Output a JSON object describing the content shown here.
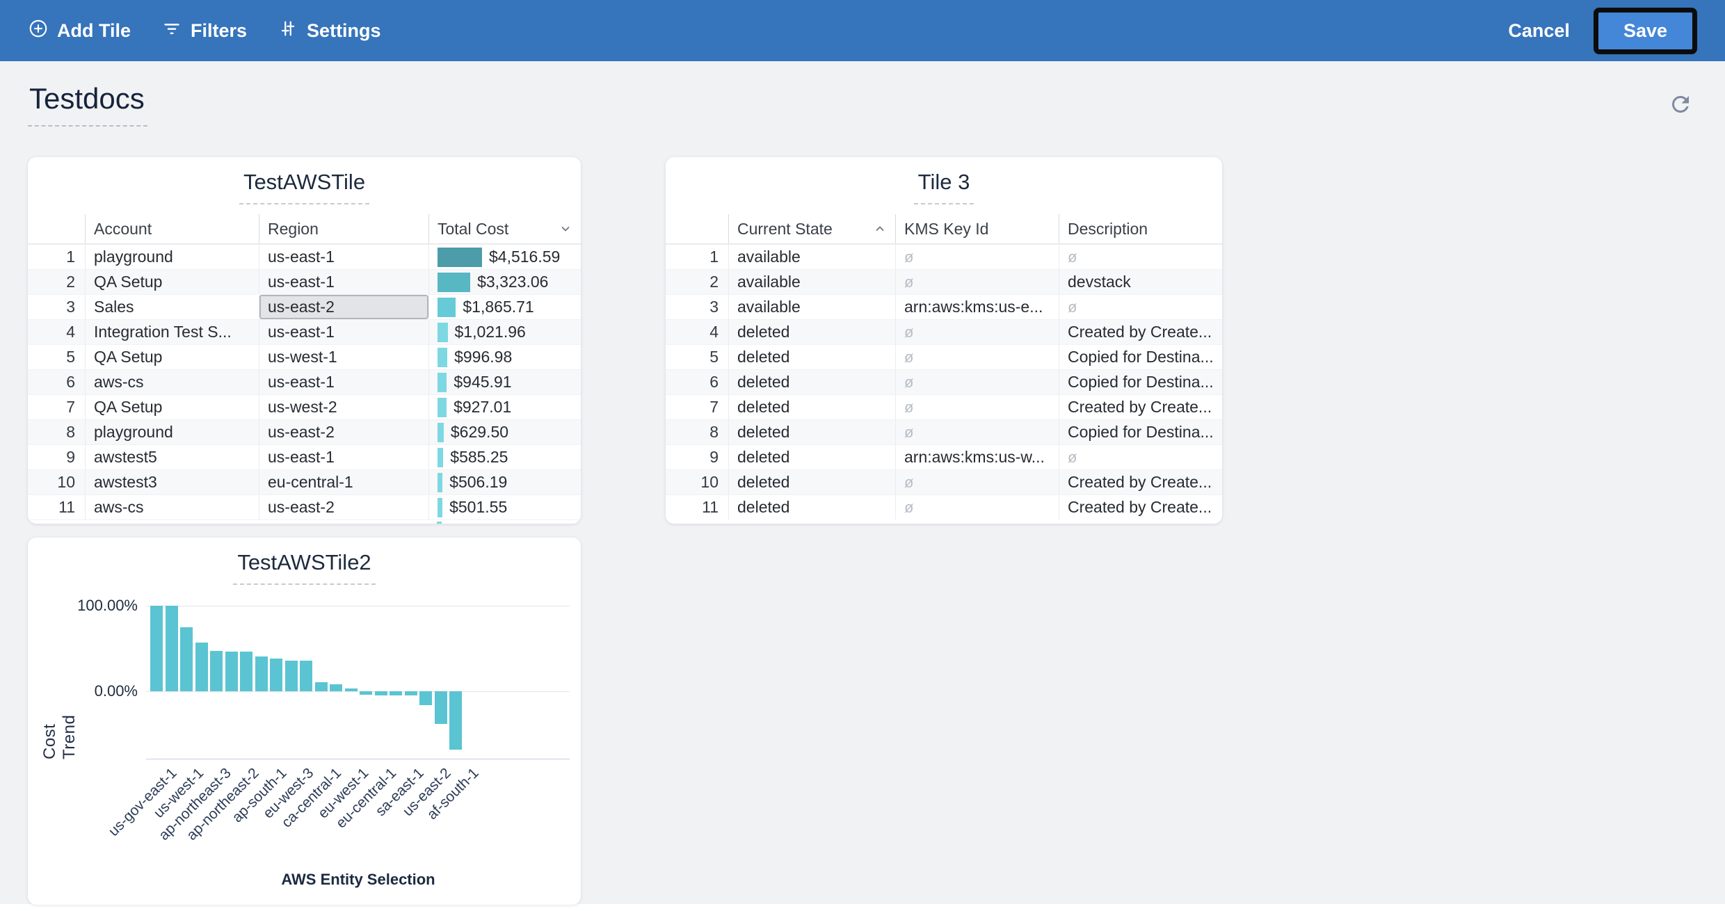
{
  "toolbar": {
    "add_tile_label": "Add Tile",
    "filters_label": "Filters",
    "settings_label": "Settings",
    "cancel_label": "Cancel",
    "save_label": "Save"
  },
  "page": {
    "title": "Testdocs"
  },
  "colors": {
    "toolbar_bg": "#3674bb",
    "save_button_bg": "#4486d8",
    "page_bg": "#f1f2f4",
    "accent_teal": "#5ac4d2",
    "selected_cell_bg": "#e3e4e6",
    "null_symbol_color": "#b7bdc4"
  },
  "tiles": {
    "aws_table": {
      "title": "TestAWSTile",
      "columns": [
        "Account",
        "Region",
        "Total Cost"
      ],
      "sort": {
        "column": "Total Cost",
        "direction": "desc"
      },
      "rows": [
        {
          "num": 1,
          "account": "playground",
          "region": "us-east-1",
          "total_cost": "$4,516.59",
          "value": 4516.59,
          "bar_color": "#4c9ca9",
          "region_selected": false
        },
        {
          "num": 2,
          "account": "QA Setup",
          "region": "us-east-1",
          "total_cost": "$3,323.06",
          "value": 3323.06,
          "bar_color": "#57b7c3",
          "region_selected": false
        },
        {
          "num": 3,
          "account": "Sales",
          "region": "us-east-2",
          "total_cost": "$1,865.71",
          "value": 1865.71,
          "bar_color": "#67cbd7",
          "region_selected": true
        },
        {
          "num": 4,
          "account": "Integration Test S...",
          "region": "us-east-1",
          "total_cost": "$1,021.96",
          "value": 1021.96,
          "bar_color": "#7dd8e2",
          "region_selected": false
        },
        {
          "num": 5,
          "account": "QA Setup",
          "region": "us-west-1",
          "total_cost": "$996.98",
          "value": 996.98,
          "bar_color": "#7dd8e2",
          "region_selected": false
        },
        {
          "num": 6,
          "account": "aws-cs",
          "region": "us-east-1",
          "total_cost": "$945.91",
          "value": 945.91,
          "bar_color": "#7dd8e2",
          "region_selected": false
        },
        {
          "num": 7,
          "account": "QA Setup",
          "region": "us-west-2",
          "total_cost": "$927.01",
          "value": 927.01,
          "bar_color": "#7dd8e2",
          "region_selected": false
        },
        {
          "num": 8,
          "account": "playground",
          "region": "us-east-2",
          "total_cost": "$629.50",
          "value": 629.5,
          "bar_color": "#7dd8e2",
          "region_selected": false
        },
        {
          "num": 9,
          "account": "awstest5",
          "region": "us-east-1",
          "total_cost": "$585.25",
          "value": 585.25,
          "bar_color": "#7dd8e2",
          "region_selected": false
        },
        {
          "num": 10,
          "account": "awstest3",
          "region": "eu-central-1",
          "total_cost": "$506.19",
          "value": 506.19,
          "bar_color": "#7dd8e2",
          "region_selected": false
        },
        {
          "num": 11,
          "account": "aws-cs",
          "region": "us-east-2",
          "total_cost": "$501.55",
          "value": 501.55,
          "bar_color": "#7dd8e2",
          "region_selected": false
        }
      ]
    },
    "tile3": {
      "title": "Tile 3",
      "columns": [
        "Current State",
        "KMS Key Id",
        "Description"
      ],
      "sort": {
        "column": "Current State",
        "direction": "asc"
      },
      "null_symbol": "ø",
      "rows": [
        {
          "num": 1,
          "current_state": "available",
          "kms_key_id": null,
          "description": null
        },
        {
          "num": 2,
          "current_state": "available",
          "kms_key_id": null,
          "description": "devstack"
        },
        {
          "num": 3,
          "current_state": "available",
          "kms_key_id": "arn:aws:kms:us-e...",
          "description": null
        },
        {
          "num": 4,
          "current_state": "deleted",
          "kms_key_id": null,
          "description": "Created by Create..."
        },
        {
          "num": 5,
          "current_state": "deleted",
          "kms_key_id": null,
          "description": "Copied for Destina..."
        },
        {
          "num": 6,
          "current_state": "deleted",
          "kms_key_id": null,
          "description": "Copied for Destina..."
        },
        {
          "num": 7,
          "current_state": "deleted",
          "kms_key_id": null,
          "description": "Created by Create..."
        },
        {
          "num": 8,
          "current_state": "deleted",
          "kms_key_id": null,
          "description": "Copied for Destina..."
        },
        {
          "num": 9,
          "current_state": "deleted",
          "kms_key_id": "arn:aws:kms:us-w...",
          "description": null
        },
        {
          "num": 10,
          "current_state": "deleted",
          "kms_key_id": null,
          "description": "Created by Create..."
        },
        {
          "num": 11,
          "current_state": "deleted",
          "kms_key_id": null,
          "description": "Created by Create..."
        }
      ]
    }
  },
  "chart_data": {
    "type": "bar",
    "title": "TestAWSTile2",
    "xlabel": "AWS Entity Selection",
    "ylabel": "Cost Trend",
    "y_ticks": [
      "100.00%",
      "0.00%"
    ],
    "ylim": [
      -80,
      110
    ],
    "grid": "horizontal at 100% and 0%",
    "legend_position": "none",
    "bar_color": "#5ac4d2",
    "values_pct": [
      100,
      100,
      75,
      57,
      47,
      46,
      46,
      41,
      38,
      36,
      36,
      11,
      8,
      3,
      -4,
      -4.5,
      -4.5,
      -4.5,
      -16.5,
      -38,
      -68
    ],
    "x_tick_labels": [
      "us-gov-east-1",
      "us-west-1",
      "ap-northeast-3",
      "ap-northeast-2",
      "ap-south-1",
      "eu-west-3",
      "ca-central-1",
      "eu-west-1",
      "eu-central-1",
      "sa-east-1",
      "us-east-2",
      "af-south-1"
    ]
  }
}
